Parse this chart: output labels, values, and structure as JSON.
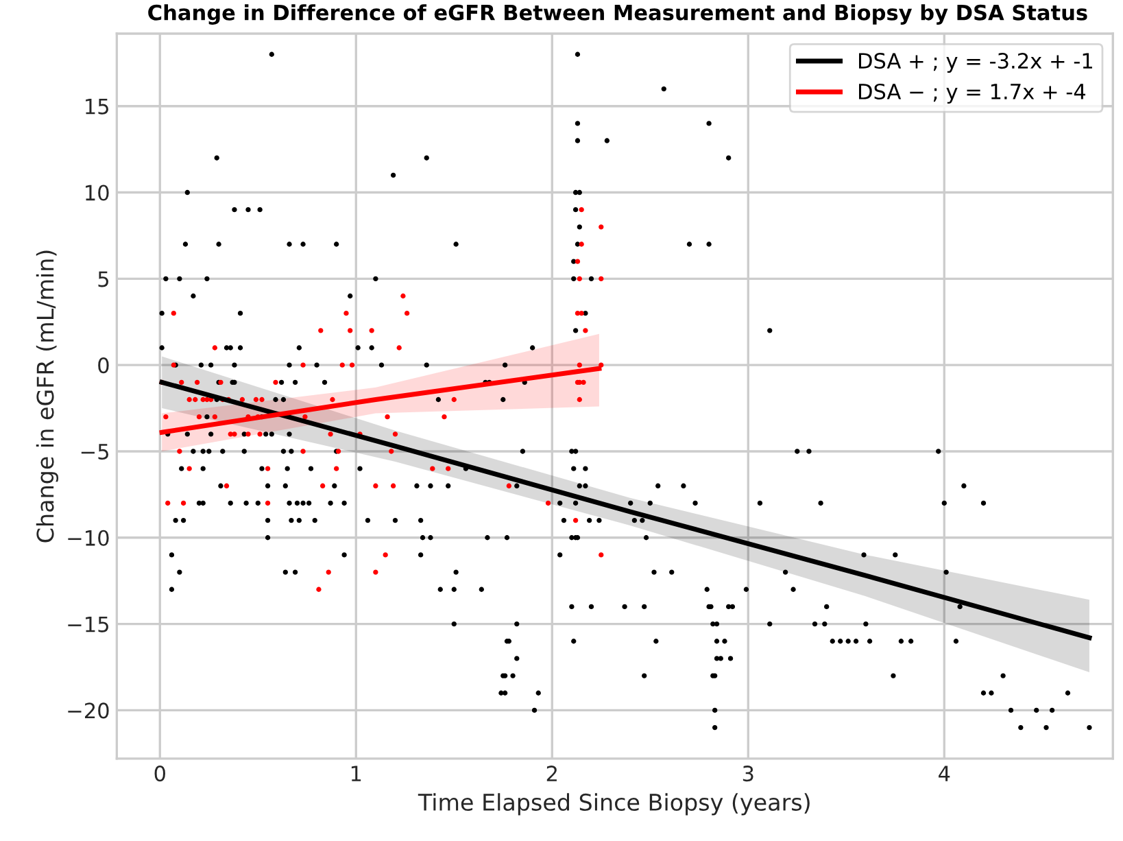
{
  "chart_data": {
    "type": "scatter",
    "title": "Change in Difference of eGFR Between Measurement and Biopsy by DSA Status",
    "xlabel": "Time Elapsed Since Biopsy (years)",
    "ylabel": "Change in eGFR (mL/min)",
    "xlim": [
      -0.22,
      4.86
    ],
    "ylim": [
      -22.8,
      19.2
    ],
    "xticks": [
      0,
      1,
      2,
      3,
      4
    ],
    "yticks": [
      {
        "value": -20,
        "label": "−20"
      },
      {
        "value": -15,
        "label": "−15"
      },
      {
        "value": -10,
        "label": "−10"
      },
      {
        "value": -5,
        "label": "−5"
      },
      0,
      5,
      10,
      15
    ],
    "grid": true,
    "legend": "top right",
    "series": [
      {
        "marker": "circle",
        "color": "#000000",
        "x": [
          0.57,
          0.29,
          1.36,
          1.19,
          0.14,
          0.38,
          0.45,
          0.51,
          0.13,
          0.3,
          0.66,
          0.73,
          0.9,
          0.03,
          0.1,
          0.24,
          1.1,
          0.17,
          0.97,
          0.01,
          0.41,
          0.01,
          0.34,
          0.36,
          0.41,
          0.71,
          1.01,
          1.08,
          0.08,
          0.21,
          0.26,
          0.38,
          0.66,
          0.8,
          1.13,
          1.36,
          0.3,
          0.37,
          0.38,
          0.62,
          0.69,
          0.84,
          0.29,
          0.59,
          0.63,
          1.42,
          0.24,
          0.52,
          0.04,
          0.14,
          0.26,
          0.43,
          0.54,
          0.57,
          0.66,
          0.17,
          0.22,
          0.25,
          0.32,
          0.43,
          0.63,
          0.67,
          0.9,
          0.11,
          0.22,
          0.52,
          0.65,
          0.77,
          1.02,
          0.31,
          0.55,
          0.64,
          0.89,
          1.31,
          1.38,
          0.2,
          0.22,
          0.36,
          0.44,
          0.5,
          0.66,
          0.7,
          0.73,
          0.76,
          0.87,
          0.94,
          0.08,
          0.12,
          0.55,
          0.67,
          0.71,
          0.79,
          1.06,
          1.2,
          1.33,
          0.55,
          1.34,
          1.38,
          0.06,
          0.94,
          1.33,
          0.1,
          0.64,
          0.69,
          0.06,
          1.43,
          2.13,
          2.57,
          2.13,
          2.8,
          2.13,
          2.28,
          2.9,
          2.12,
          2.14,
          2.12,
          2.14,
          1.51,
          2.13,
          2.7,
          2.8,
          2.11,
          2.11,
          2.2,
          2.17,
          2.12,
          3.11,
          1.9,
          1.76,
          1.66,
          1.68,
          1.86,
          1.75,
          1.85,
          2.1,
          2.12,
          1.56,
          2.11,
          2.17,
          1.47,
          1.82,
          2.14,
          2.17,
          2.54,
          2.67,
          2.04,
          2.12,
          2.4,
          2.5,
          2.73,
          3.06,
          2.06,
          2.19,
          2.24,
          2.42,
          2.46,
          1.67,
          1.77,
          2.1,
          2.12,
          2.13,
          2.48,
          2.04,
          1.51,
          2.52,
          2.61,
          1.5,
          1.64,
          2.79,
          2.99,
          2.1,
          2.2,
          2.37,
          2.47,
          2.8,
          2.81,
          2.9,
          2.92,
          1.5,
          1.82,
          2.82,
          2.84,
          3.11,
          1.77,
          1.78,
          2.11,
          2.53,
          2.84,
          2.88,
          1.82,
          2.84,
          2.86,
          2.91,
          1.75,
          1.76,
          1.8,
          2.47,
          2.82,
          2.83,
          1.74,
          1.76,
          1.93,
          1.91,
          2.83,
          2.83,
          3.25,
          3.31,
          3.97,
          4.1,
          3.37,
          4.0,
          4.2,
          3.59,
          3.75,
          3.19,
          4.01,
          3.23,
          3.4,
          4.08,
          3.34,
          3.39,
          3.6,
          3.43,
          3.47,
          3.51,
          3.55,
          3.62,
          3.78,
          3.83,
          4.06,
          3.74,
          4.3,
          4.2,
          4.24,
          4.63,
          4.34,
          4.47,
          4.55,
          4.39,
          4.52,
          4.74
        ],
        "values": [
          18,
          12,
          12,
          11,
          10,
          9,
          9,
          9,
          7,
          7,
          7,
          7,
          7,
          5,
          5,
          5,
          5,
          4,
          4,
          3,
          3,
          1,
          1,
          1,
          1,
          1,
          1,
          1,
          0,
          0,
          0,
          0,
          0,
          0,
          0,
          0,
          -1,
          -1,
          -1,
          -1,
          -1,
          -1,
          -2,
          -2,
          -2,
          -2,
          -3,
          -3,
          -4,
          -4,
          -4,
          -4,
          -4,
          -4,
          -4,
          -5,
          -5,
          -5,
          -5,
          -5,
          -5,
          -5,
          -5,
          -6,
          -6,
          -6,
          -6,
          -6,
          -6,
          -7,
          -7,
          -7,
          -7,
          -7,
          -7,
          -8,
          -8,
          -8,
          -8,
          -8,
          -8,
          -8,
          -8,
          -8,
          -8,
          -8,
          -9,
          -9,
          -9,
          -9,
          -9,
          -9,
          -9,
          -9,
          -9,
          -10,
          -10,
          -10,
          -11,
          -11,
          -11,
          -12,
          -12,
          -12,
          -13,
          -13,
          18,
          16,
          14,
          14,
          13,
          13,
          12,
          10,
          10,
          9,
          8,
          7,
          7,
          7,
          7,
          6,
          5,
          5,
          3,
          2,
          2,
          1,
          0,
          -1,
          -1,
          -1,
          -2,
          -5,
          -5,
          -5,
          -6,
          -6,
          -6,
          -7,
          -7,
          -7,
          -7,
          -7,
          -7,
          -8,
          -8,
          -8,
          -8,
          -8,
          -8,
          -9,
          -9,
          -9,
          -9,
          -9,
          -10,
          -10,
          -10,
          -10,
          -10,
          -10,
          -11,
          -12,
          -12,
          -12,
          -13,
          -13,
          -13,
          -13,
          -14,
          -14,
          -14,
          -14,
          -14,
          -14,
          -14,
          -14,
          -15,
          -15,
          -15,
          -15,
          -15,
          -16,
          -16,
          -16,
          -16,
          -16,
          -16,
          -17,
          -17,
          -17,
          -17,
          -18,
          -18,
          -18,
          -18,
          -18,
          -18,
          -19,
          -19,
          -19,
          -20,
          -20,
          -21,
          -5,
          -5,
          -5,
          -7,
          -8,
          -8,
          -8,
          -11,
          -11,
          -12,
          -12,
          -13,
          -14,
          -14,
          -15,
          -15,
          -15,
          -16,
          -16,
          -16,
          -16,
          -16,
          -16,
          -16,
          -16,
          -18,
          -18,
          -19,
          -19,
          -19,
          -20,
          -20,
          -20,
          -21,
          -21,
          -21
        ]
      },
      {
        "marker": "circle",
        "color": "#ff0000",
        "x": [
          0.07,
          0.95,
          1.26,
          1.24,
          0.82,
          0.97,
          1.08,
          0.28,
          1.22,
          0.07,
          0.73,
          0.93,
          0.98,
          0.01,
          0.11,
          0.19,
          0.31,
          0.59,
          0.15,
          0.18,
          0.22,
          0.24,
          0.26,
          0.32,
          0.35,
          0.42,
          0.49,
          0.52,
          0.88,
          0.03,
          0.2,
          0.28,
          0.45,
          0.5,
          0.74,
          1.16,
          1.45,
          0.36,
          0.38,
          0.45,
          0.51,
          0.87,
          1.02,
          1.2,
          0.1,
          0.73,
          0.91,
          1.18,
          0.15,
          0.55,
          0.9,
          1.39,
          1.47,
          0.34,
          0.83,
          1.1,
          1.19,
          0.04,
          0.12,
          0.55,
          1.15,
          0.86,
          1.1,
          0.81,
          2.15,
          2.25,
          2.15,
          2.13,
          2.14,
          2.25,
          2.13,
          2.15,
          2.17,
          2.14,
          2.25,
          2.13,
          2.14,
          2.16,
          2.14,
          1.5,
          1.78,
          1.98,
          2.12,
          2.25
        ],
        "values": [
          3,
          3,
          3,
          4,
          2,
          2,
          2,
          1,
          1,
          0,
          0,
          0,
          0,
          -1,
          -1,
          -1,
          -1,
          -1,
          -2,
          -2,
          -2,
          -2,
          -2,
          -2,
          -2,
          -2,
          -2,
          -2,
          -2,
          -3,
          -3,
          -3,
          -3,
          -3,
          -3,
          -3,
          -3,
          -4,
          -4,
          -4,
          -4,
          -4,
          -4,
          -4,
          -5,
          -5,
          -5,
          -5,
          -6,
          -6,
          -6,
          -6,
          -6,
          -7,
          -7,
          -7,
          -7,
          -8,
          -8,
          -8,
          -11,
          -12,
          -12,
          -13,
          9,
          8,
          7,
          6,
          5,
          5,
          3,
          3,
          2,
          0,
          0,
          -1,
          -1,
          -1,
          -2,
          -2,
          -7,
          -8,
          -9,
          -11
        ]
      },
      {
        "type": "line",
        "name": "DSA + ; y = -3.2x + -1",
        "color": "#000000",
        "x": [
          0.01,
          1.2,
          2.4,
          3.6,
          4.74
        ],
        "values": [
          -1.0,
          -4.7,
          -8.5,
          -12.2,
          -15.8
        ],
        "lower": [
          -2.5,
          -5.6,
          -9.3,
          -13.4,
          -17.8
        ],
        "upper": [
          0.5,
          -3.8,
          -7.7,
          -11.0,
          -13.6
        ]
      },
      {
        "type": "line",
        "name": "DSA − ; y = 1.7x + -4",
        "color": "#ff0000",
        "x": [
          0.01,
          1.1,
          2.24
        ],
        "values": [
          -3.9,
          -2.0,
          -0.2
        ],
        "lower": [
          -5.0,
          -2.8,
          -2.4
        ],
        "upper": [
          -2.8,
          -1.3,
          1.8
        ]
      }
    ]
  }
}
